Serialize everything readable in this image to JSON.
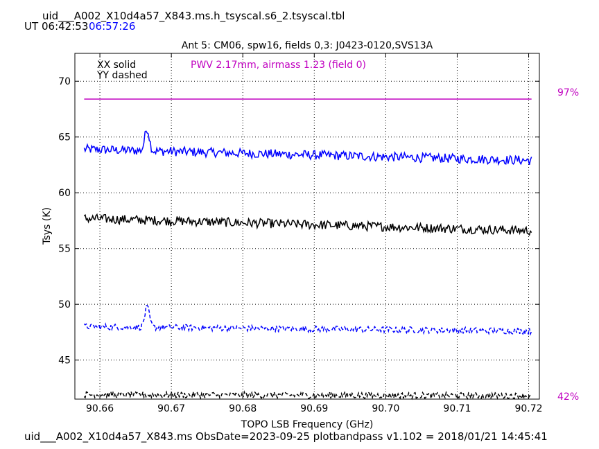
{
  "header": {
    "filename": "uid___A002_X10d4a57_X843.ms.h_tsyscal.s6_2.tsyscal.tbl",
    "ut_label": "UT",
    "ut_time_1": "06:42:53",
    "ut_time_2": "06:57:26"
  },
  "footer": {
    "text": "uid___A002_X10d4a57_X843.ms  ObsDate=2023-09-25   plotbandpass v1.102 = 2018/01/21 14:45:41"
  },
  "colors": {
    "xx_blue": "#0000ff",
    "xx_black": "#000000",
    "atm": "#c000c0",
    "time2": "#0000ff"
  },
  "chart_data": {
    "type": "line",
    "title": "Ant 5: CM06,  spw16,  fields 0,3: J0423-0120,SVS13A",
    "xlabel": "TOPO LSB Frequency (GHz)",
    "ylabel": "Tsys (K)",
    "xlim": [
      90.6565,
      90.7215
    ],
    "ylim": [
      41.5,
      72.5
    ],
    "x_ticks": [
      90.66,
      90.67,
      90.68,
      90.69,
      90.7,
      90.71,
      90.72
    ],
    "x_tick_labels": [
      "90.66",
      "90.67",
      "90.68",
      "90.69",
      "90.70",
      "90.71",
      "90.72"
    ],
    "y_ticks": [
      45,
      50,
      55,
      60,
      65,
      70
    ],
    "y_tick_labels": [
      "45",
      "50",
      "55",
      "60",
      "65",
      "70"
    ],
    "grid": true,
    "legend": [
      "XX solid",
      "YY dashed"
    ],
    "legend_placement": "top-left",
    "annotation": "PWV 2.17mm, airmass 1.23 (field 0)",
    "right_labels": {
      "top": "97%",
      "bottom": "42%"
    },
    "series": [
      {
        "color": "#0000ff",
        "style": "solid",
        "x_range": [
          90.6578,
          90.7204
        ],
        "level_start": 63.9,
        "level_end": 62.9,
        "spike_x": 90.6666,
        "spike_peak": 65.9
      },
      {
        "color": "#000000",
        "style": "solid",
        "x_range": [
          90.6578,
          90.7204
        ],
        "level_start": 57.7,
        "level_end": 56.6
      },
      {
        "color": "#0000ff",
        "style": "dashed",
        "x_range": [
          90.6578,
          90.7204
        ],
        "level_start": 48.0,
        "level_end": 47.6,
        "spike_x": 90.6666,
        "spike_peak": 49.8
      },
      {
        "color": "#000000",
        "style": "dashed",
        "x_range": [
          90.6578,
          90.7204
        ],
        "level_start": 41.9,
        "level_end": 41.8
      },
      {
        "color": "#c000c0",
        "style": "solid",
        "x_range": [
          90.6578,
          90.7204
        ],
        "level_start": 68.4,
        "level_end": 68.4
      }
    ]
  }
}
